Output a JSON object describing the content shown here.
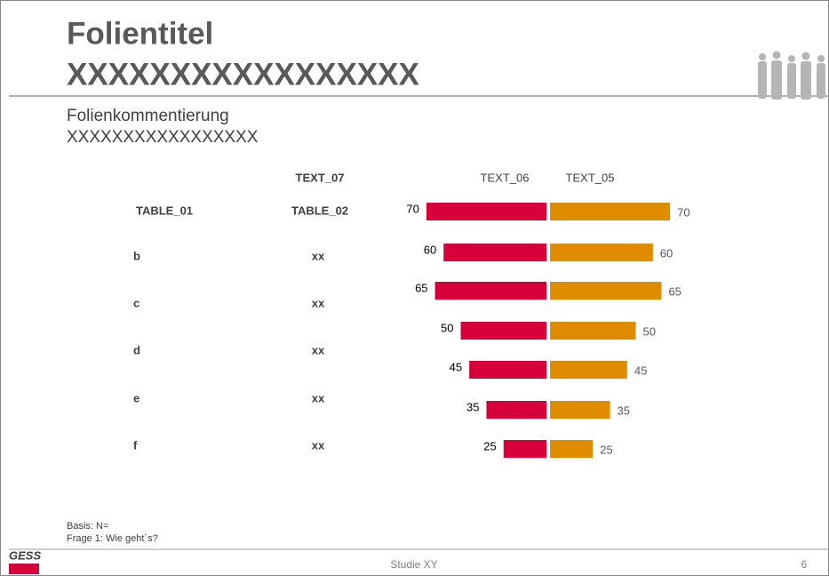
{
  "header": {
    "title": "Folientitel",
    "title_line2": "XXXXXXXXXXXXXXXXX",
    "comment": "Folienkommentierung",
    "comment_line2": "XXXXXXXXXXXXXXXXX"
  },
  "table": {
    "header": "TEXT_07",
    "columns": [
      "TABLE_01",
      "TABLE_02"
    ],
    "rows": [
      [
        "b",
        "xx"
      ],
      [
        "c",
        "xx"
      ],
      [
        "d",
        "xx"
      ],
      [
        "e",
        "xx"
      ],
      [
        "f",
        "xx"
      ]
    ]
  },
  "chart_data": {
    "type": "butterfly",
    "categories": [
      null,
      null,
      null,
      null,
      null,
      null,
      null
    ],
    "series": [
      {
        "name": "TEXT_06",
        "color": "#d7003a",
        "values": [
          70,
          60,
          65,
          50,
          45,
          35,
          25
        ]
      },
      {
        "name": "TEXT_05",
        "color": "#e08c00",
        "values": [
          70,
          60,
          65,
          50,
          45,
          35,
          25
        ]
      }
    ]
  },
  "footer": {
    "basis": "Basis: N=",
    "question": "Frage 1: Wie geht´s?",
    "logo": "GESS",
    "study": "Studie XY",
    "page": "6"
  }
}
